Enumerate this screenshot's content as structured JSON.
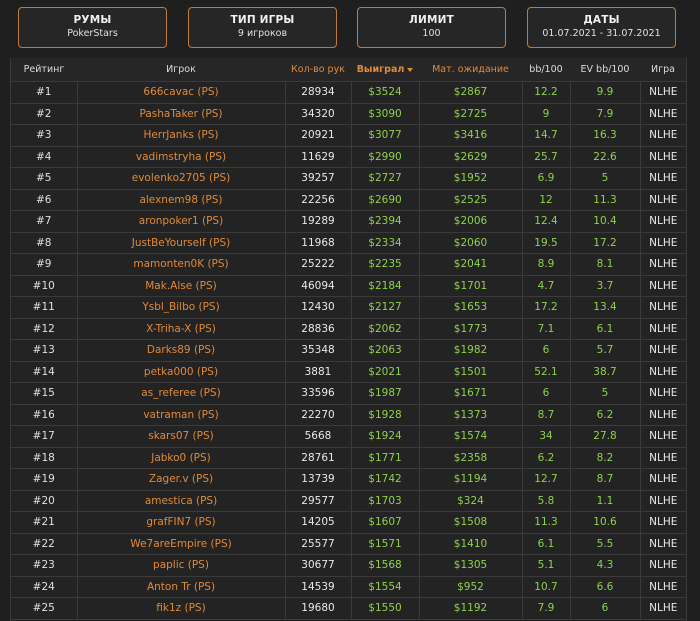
{
  "filters": [
    {
      "title": "РУМЫ",
      "value": "PokerStars"
    },
    {
      "title": "ТИП ИГРЫ",
      "value": "9 игроков"
    },
    {
      "title": "ЛИМИТ",
      "value": "100"
    },
    {
      "title": "ДАТЫ",
      "value": "01.07.2021 - 31.07.2021"
    }
  ],
  "table": {
    "headers": {
      "rank": "Рейтинг",
      "player": "Игрок",
      "hands": "Кол-во рук",
      "won": "Выиграл",
      "ev": "Мат. ожидание",
      "bb100": "bb/100",
      "evbb100": "EV bb/100",
      "game": "Игра"
    },
    "rows": [
      {
        "rank": "#1",
        "player": "666cavac (PS)",
        "hands": "28934",
        "won": "$3524",
        "ev": "$2867",
        "bb100": "12.2",
        "evbb100": "9.9",
        "game": "NLHE"
      },
      {
        "rank": "#2",
        "player": "PashaTaker (PS)",
        "hands": "34320",
        "won": "$3090",
        "ev": "$2725",
        "bb100": "9",
        "evbb100": "7.9",
        "game": "NLHE"
      },
      {
        "rank": "#3",
        "player": "HerrJanks (PS)",
        "hands": "20921",
        "won": "$3077",
        "ev": "$3416",
        "bb100": "14.7",
        "evbb100": "16.3",
        "game": "NLHE"
      },
      {
        "rank": "#4",
        "player": "vadimstryha (PS)",
        "hands": "11629",
        "won": "$2990",
        "ev": "$2629",
        "bb100": "25.7",
        "evbb100": "22.6",
        "game": "NLHE"
      },
      {
        "rank": "#5",
        "player": "evolenko2705 (PS)",
        "hands": "39257",
        "won": "$2727",
        "ev": "$1952",
        "bb100": "6.9",
        "evbb100": "5",
        "game": "NLHE"
      },
      {
        "rank": "#6",
        "player": "alexnem98 (PS)",
        "hands": "22256",
        "won": "$2690",
        "ev": "$2525",
        "bb100": "12",
        "evbb100": "11.3",
        "game": "NLHE"
      },
      {
        "rank": "#7",
        "player": "aronpoker1 (PS)",
        "hands": "19289",
        "won": "$2394",
        "ev": "$2006",
        "bb100": "12.4",
        "evbb100": "10.4",
        "game": "NLHE"
      },
      {
        "rank": "#8",
        "player": "JustBeYourself (PS)",
        "hands": "11968",
        "won": "$2334",
        "ev": "$2060",
        "bb100": "19.5",
        "evbb100": "17.2",
        "game": "NLHE"
      },
      {
        "rank": "#9",
        "player": "mamonten0K (PS)",
        "hands": "25222",
        "won": "$2235",
        "ev": "$2041",
        "bb100": "8.9",
        "evbb100": "8.1",
        "game": "NLHE"
      },
      {
        "rank": "#10",
        "player": "Mak.Alse (PS)",
        "hands": "46094",
        "won": "$2184",
        "ev": "$1701",
        "bb100": "4.7",
        "evbb100": "3.7",
        "game": "NLHE"
      },
      {
        "rank": "#11",
        "player": "Ysbl_Bilbo (PS)",
        "hands": "12430",
        "won": "$2127",
        "ev": "$1653",
        "bb100": "17.2",
        "evbb100": "13.4",
        "game": "NLHE"
      },
      {
        "rank": "#12",
        "player": "X-Triha-X (PS)",
        "hands": "28836",
        "won": "$2062",
        "ev": "$1773",
        "bb100": "7.1",
        "evbb100": "6.1",
        "game": "NLHE"
      },
      {
        "rank": "#13",
        "player": "Darks89 (PS)",
        "hands": "35348",
        "won": "$2063",
        "ev": "$1982",
        "bb100": "6",
        "evbb100": "5.7",
        "game": "NLHE"
      },
      {
        "rank": "#14",
        "player": "petka000 (PS)",
        "hands": "3881",
        "won": "$2021",
        "ev": "$1501",
        "bb100": "52.1",
        "evbb100": "38.7",
        "game": "NLHE"
      },
      {
        "rank": "#15",
        "player": "as_referee (PS)",
        "hands": "33596",
        "won": "$1987",
        "ev": "$1671",
        "bb100": "6",
        "evbb100": "5",
        "game": "NLHE"
      },
      {
        "rank": "#16",
        "player": "vatraman (PS)",
        "hands": "22270",
        "won": "$1928",
        "ev": "$1373",
        "bb100": "8.7",
        "evbb100": "6.2",
        "game": "NLHE"
      },
      {
        "rank": "#17",
        "player": "skars07 (PS)",
        "hands": "5668",
        "won": "$1924",
        "ev": "$1574",
        "bb100": "34",
        "evbb100": "27.8",
        "game": "NLHE"
      },
      {
        "rank": "#18",
        "player": "Jabko0 (PS)",
        "hands": "28761",
        "won": "$1771",
        "ev": "$2358",
        "bb100": "6.2",
        "evbb100": "8.2",
        "game": "NLHE"
      },
      {
        "rank": "#19",
        "player": "Zager.v (PS)",
        "hands": "13739",
        "won": "$1742",
        "ev": "$1194",
        "bb100": "12.7",
        "evbb100": "8.7",
        "game": "NLHE"
      },
      {
        "rank": "#20",
        "player": "amestica (PS)",
        "hands": "29577",
        "won": "$1703",
        "ev": "$324",
        "bb100": "5.8",
        "evbb100": "1.1",
        "game": "NLHE"
      },
      {
        "rank": "#21",
        "player": "grafFIN7 (PS)",
        "hands": "14205",
        "won": "$1607",
        "ev": "$1508",
        "bb100": "11.3",
        "evbb100": "10.6",
        "game": "NLHE"
      },
      {
        "rank": "#22",
        "player": "We7areEmpire (PS)",
        "hands": "25577",
        "won": "$1571",
        "ev": "$1410",
        "bb100": "6.1",
        "evbb100": "5.5",
        "game": "NLHE"
      },
      {
        "rank": "#23",
        "player": "paplic (PS)",
        "hands": "30677",
        "won": "$1568",
        "ev": "$1305",
        "bb100": "5.1",
        "evbb100": "4.3",
        "game": "NLHE"
      },
      {
        "rank": "#24",
        "player": "Anton Tr (PS)",
        "hands": "14539",
        "won": "$1554",
        "ev": "$952",
        "bb100": "10.7",
        "evbb100": "6.6",
        "game": "NLHE"
      },
      {
        "rank": "#25",
        "player": "fik1z (PS)",
        "hands": "19680",
        "won": "$1550",
        "ev": "$1192",
        "bb100": "7.9",
        "evbb100": "6",
        "game": "NLHE"
      }
    ]
  },
  "colors": {
    "accent": "#e08a3a",
    "positive": "#8fd14f",
    "background": "#1f1f1f"
  }
}
